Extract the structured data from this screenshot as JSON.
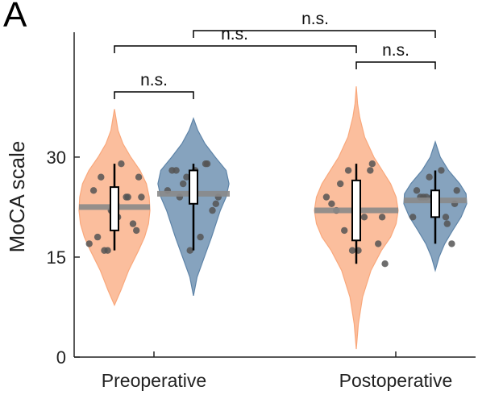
{
  "panel_label": "A",
  "chart_data": {
    "type": "violin",
    "title": "",
    "ylabel": "MoCA scale",
    "xlabel": "",
    "ylim": [
      0,
      38
    ],
    "yticks": [
      0,
      15,
      30
    ],
    "ytick_labels": [
      "0",
      "15",
      "30"
    ],
    "categories": [
      "Preoperative",
      "Postoperative"
    ],
    "series": [
      {
        "group": 0,
        "color": "#f9a87c",
        "median": 22.5,
        "q1": 19,
        "q3": 25.5,
        "whisker_low": 16,
        "whisker_high": 29,
        "kde_y": [
          7.8,
          10,
          13,
          16,
          18,
          20,
          22,
          24,
          26,
          28,
          30,
          32,
          34,
          37.2
        ],
        "kde_w": [
          0,
          0.18,
          0.4,
          0.68,
          0.85,
          0.96,
          1.0,
          0.98,
          0.9,
          0.72,
          0.46,
          0.24,
          0.1,
          0
        ],
        "points": [
          25,
          16,
          23,
          24,
          27,
          18,
          29,
          22,
          20,
          17,
          24,
          16,
          19,
          27,
          21,
          24
        ]
      },
      {
        "group": 0,
        "color": "#5e84a8",
        "median": 24.5,
        "q1": 23,
        "q3": 28,
        "whisker_low": 16,
        "whisker_high": 29,
        "kde_y": [
          9.2,
          12,
          15,
          18,
          20,
          22,
          24,
          26,
          28,
          30,
          32,
          34,
          35.8
        ],
        "kde_w": [
          0,
          0.1,
          0.3,
          0.5,
          0.62,
          0.74,
          0.9,
          0.98,
          0.9,
          0.6,
          0.32,
          0.12,
          0
        ],
        "points": [
          28,
          26,
          28,
          29,
          24,
          28,
          18,
          16,
          22,
          25,
          29,
          27,
          23,
          24
        ]
      },
      {
        "group": 1,
        "color": "#f9a87c",
        "median": 22,
        "q1": 17.5,
        "q3": 26.5,
        "whisker_low": 14,
        "whisker_high": 29,
        "kde_y": [
          1.2,
          5,
          9,
          13,
          16,
          18,
          20,
          22,
          24,
          26,
          28,
          30,
          33,
          36,
          38,
          40.6
        ],
        "kde_w": [
          0,
          0.05,
          0.15,
          0.35,
          0.6,
          0.82,
          0.95,
          1.0,
          0.95,
          0.82,
          0.62,
          0.42,
          0.2,
          0.08,
          0.03,
          0
        ],
        "points": [
          23,
          19,
          16,
          28,
          14,
          22,
          21,
          16,
          17,
          24,
          29,
          28,
          21,
          26
        ]
      },
      {
        "group": 1,
        "color": "#5e84a8",
        "median": 23.5,
        "q1": 21,
        "q3": 25,
        "whisker_low": 17,
        "whisker_high": 28,
        "kde_y": [
          13,
          15,
          17,
          19,
          21,
          23,
          24.5,
          26,
          28,
          30,
          32.3
        ],
        "kde_w": [
          0,
          0.12,
          0.3,
          0.55,
          0.82,
          1.0,
          0.98,
          0.78,
          0.42,
          0.16,
          0
        ],
        "points": [
          25,
          24,
          22,
          21,
          25,
          24,
          28,
          24,
          17,
          21,
          20,
          27,
          23,
          24
        ]
      }
    ],
    "significance": [
      {
        "label": "n.s.",
        "from": 0,
        "to": 1
      },
      {
        "label": "n.s.",
        "from": 0,
        "to": 2
      },
      {
        "label": "n.s.",
        "from": 1,
        "to": 3
      },
      {
        "label": "n.s.",
        "from": 2,
        "to": 3
      }
    ]
  }
}
